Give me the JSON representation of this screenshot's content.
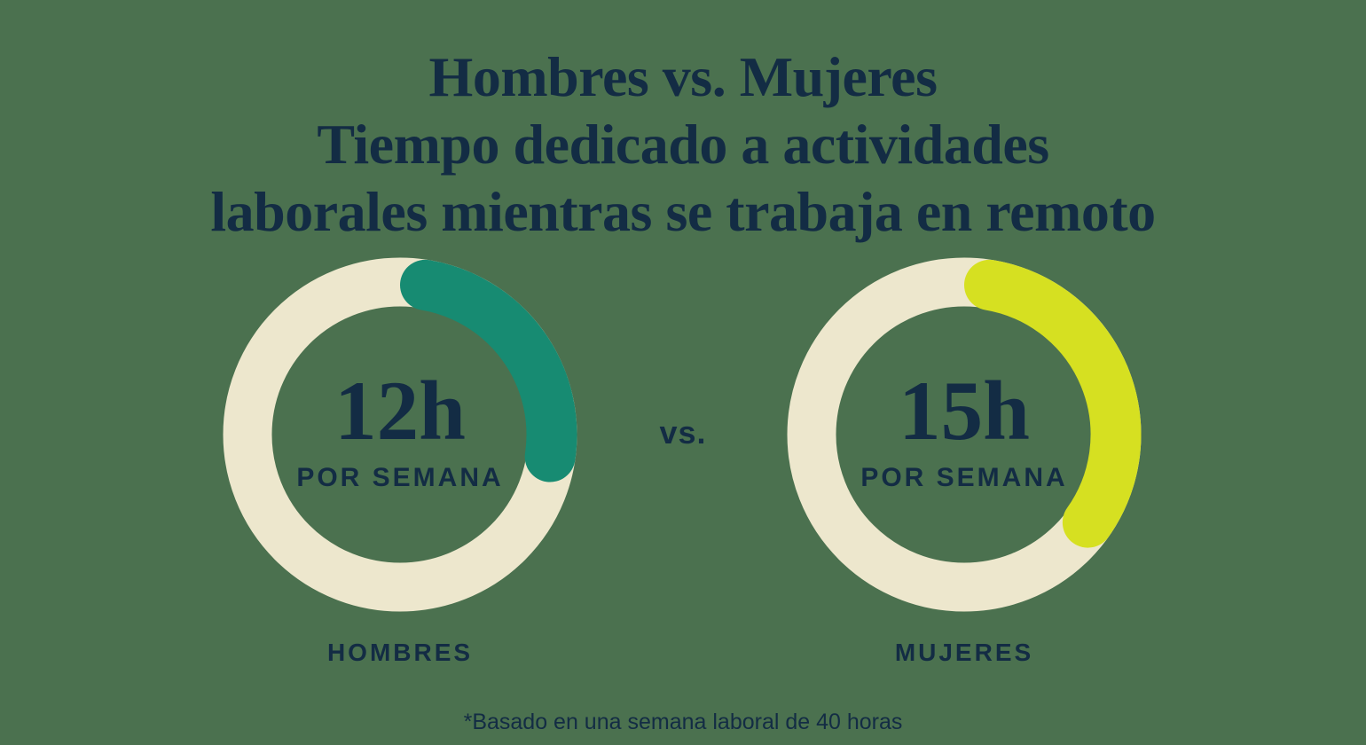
{
  "page": {
    "background_color": "#4B714F",
    "text_color": "#132C44"
  },
  "title": {
    "line1": "Hombres vs. Mujeres",
    "line2": "Tiempo dedicado a actividades",
    "line3": "laborales mientras se trabaja en remoto"
  },
  "separator": {
    "label": "vs."
  },
  "footnote": "*Basado en una semana laboral de 40 horas",
  "chart_data": {
    "type": "pie",
    "subtype": "donut-comparison",
    "title": "Hombres vs. Mujeres — Tiempo dedicado a actividades laborales mientras se trabaja en remoto",
    "footnote": "*Basado en una semana laboral de 40 horas",
    "total_hours_per_week": 40,
    "unit": "horas por semana",
    "colors": {
      "track": "#EDE7CD",
      "men_arc": "#178B72",
      "women_arc": "#D6E021",
      "text": "#132C44"
    },
    "series": [
      {
        "name": "HOMBRES",
        "value_hours": 12,
        "fraction_of_week": 0.3,
        "value_label": "12h",
        "sub_label": "POR SEMANA",
        "arc_color": "#178B72"
      },
      {
        "name": "MUJERES",
        "value_hours": 15,
        "fraction_of_week": 0.375,
        "value_label": "15h",
        "sub_label": "POR SEMANA",
        "arc_color": "#D6E021"
      }
    ]
  }
}
